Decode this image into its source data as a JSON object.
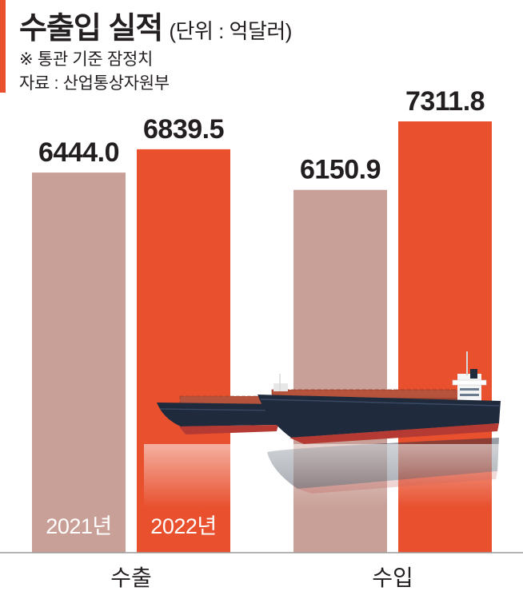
{
  "header": {
    "title": "수출입 실적",
    "subtitle": "(단위 : 억달러)",
    "note": "※ 통관 기준 잠정치",
    "source": "자료 : 산업통상자원부"
  },
  "colors": {
    "accent": "#e8502e",
    "series_2021": "#c9a097",
    "series_2022": "#e8502e",
    "text": "#231f20",
    "hull": "#1f2a3c"
  },
  "decoration": {
    "image": "container-ship-icon"
  },
  "chart_data": {
    "type": "bar",
    "categories": [
      "수출",
      "수입"
    ],
    "series": [
      {
        "name": "2021년",
        "values": [
          6444.0,
          6150.9
        ]
      },
      {
        "name": "2022년",
        "values": [
          6839.5,
          7311.8
        ]
      }
    ],
    "data_labels": [
      [
        "6444.0",
        "6150.9"
      ],
      [
        "6839.5",
        "7311.8"
      ]
    ],
    "title": "수출입 실적",
    "ylabel": "억달러",
    "ylim": [
      0,
      7311.8
    ],
    "grid": false,
    "legend": "inside-bars"
  }
}
